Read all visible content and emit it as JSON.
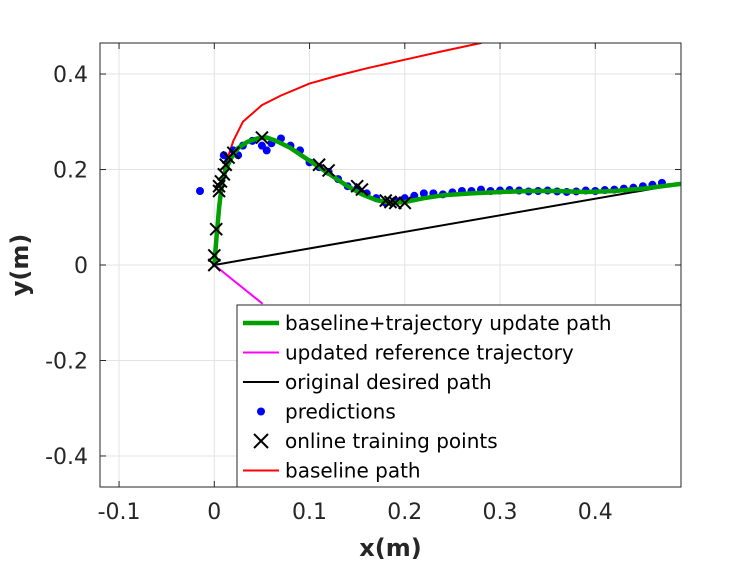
{
  "chart_data": {
    "type": "line",
    "title": "",
    "xlabel": "x(m)",
    "ylabel": "y(m)",
    "xlim": [
      -0.12,
      0.49
    ],
    "ylim": [
      -0.465,
      0.465
    ],
    "grid": true,
    "legend_position": "bottom-right",
    "x_ticks": [
      -0.1,
      0,
      0.1,
      0.2,
      0.3,
      0.4
    ],
    "x_tick_labels": [
      "-0.1",
      "0",
      "0.1",
      "0.2",
      "0.3",
      "0.4"
    ],
    "y_ticks": [
      -0.4,
      -0.2,
      0,
      0.2,
      0.4
    ],
    "y_tick_labels": [
      "-0.4",
      "-0.2",
      "0",
      "0.2",
      "0.4"
    ],
    "series": [
      {
        "name": "baseline+trajectory update path",
        "style": "line",
        "color": "#00a000",
        "x": [
          0,
          0.002,
          0.005,
          0.008,
          0.012,
          0.018,
          0.025,
          0.035,
          0.045,
          0.055,
          0.065,
          0.08,
          0.095,
          0.11,
          0.125,
          0.14,
          0.155,
          0.17,
          0.185,
          0.2,
          0.22,
          0.24,
          0.27,
          0.3,
          0.33,
          0.36,
          0.39,
          0.42,
          0.45,
          0.49
        ],
        "y": [
          0,
          0.05,
          0.12,
          0.17,
          0.2,
          0.225,
          0.245,
          0.258,
          0.265,
          0.267,
          0.26,
          0.245,
          0.225,
          0.205,
          0.185,
          0.165,
          0.148,
          0.136,
          0.13,
          0.132,
          0.14,
          0.146,
          0.15,
          0.153,
          0.155,
          0.155,
          0.153,
          0.155,
          0.16,
          0.17
        ]
      },
      {
        "name": "updated reference trajectory",
        "style": "line",
        "color": "#ff00ff",
        "x": [
          0,
          0.05
        ],
        "y": [
          0,
          -0.08
        ]
      },
      {
        "name": "original desired path",
        "style": "line",
        "color": "#000000",
        "x": [
          0,
          0.49
        ],
        "y": [
          0,
          0.17
        ]
      },
      {
        "name": "predictions",
        "style": "dots",
        "color": "#0000ff",
        "x": [
          -0.015,
          0.01,
          0.015,
          0.02,
          0.025,
          0.03,
          0.04,
          0.05,
          0.055,
          0.06,
          0.07,
          0.08,
          0.09,
          0.1,
          0.11,
          0.12,
          0.13,
          0.14,
          0.15,
          0.16,
          0.17,
          0.18,
          0.19,
          0.2,
          0.21,
          0.22,
          0.23,
          0.24,
          0.25,
          0.26,
          0.27,
          0.28,
          0.29,
          0.3,
          0.31,
          0.32,
          0.33,
          0.34,
          0.35,
          0.36,
          0.37,
          0.38,
          0.39,
          0.4,
          0.41,
          0.42,
          0.43,
          0.44,
          0.45,
          0.46,
          0.47
        ],
        "y": [
          0.155,
          0.23,
          0.22,
          0.24,
          0.23,
          0.25,
          0.26,
          0.25,
          0.24,
          0.255,
          0.265,
          0.25,
          0.24,
          0.215,
          0.205,
          0.195,
          0.18,
          0.165,
          0.16,
          0.15,
          0.14,
          0.13,
          0.135,
          0.14,
          0.145,
          0.15,
          0.15,
          0.148,
          0.152,
          0.155,
          0.155,
          0.158,
          0.155,
          0.156,
          0.157,
          0.156,
          0.154,
          0.155,
          0.156,
          0.154,
          0.153,
          0.154,
          0.156,
          0.155,
          0.157,
          0.158,
          0.16,
          0.162,
          0.165,
          0.168,
          0.172
        ]
      },
      {
        "name": "online training points",
        "style": "crosses",
        "color": "#000000",
        "x": [
          0,
          0,
          0.002,
          0.005,
          0.005,
          0.007,
          0.01,
          0.012,
          0.015,
          0.02,
          0.05,
          0.11,
          0.12,
          0.15,
          0.155,
          0.18,
          0.185,
          0.19,
          0.2
        ],
        "y": [
          0,
          0.02,
          0.075,
          0.155,
          0.165,
          0.175,
          0.19,
          0.21,
          0.225,
          0.235,
          0.267,
          0.21,
          0.198,
          0.165,
          0.158,
          0.135,
          0.132,
          0.13,
          0.13
        ]
      },
      {
        "name": "baseline path",
        "style": "line",
        "color": "#ff0000",
        "x": [
          0.01,
          0.02,
          0.03,
          0.05,
          0.07,
          0.1,
          0.13,
          0.16,
          0.2,
          0.24,
          0.28
        ],
        "y": [
          0.2,
          0.26,
          0.3,
          0.335,
          0.355,
          0.38,
          0.397,
          0.412,
          0.43,
          0.448,
          0.465
        ]
      }
    ],
    "legend_order": [
      0,
      1,
      2,
      3,
      4,
      5
    ]
  }
}
